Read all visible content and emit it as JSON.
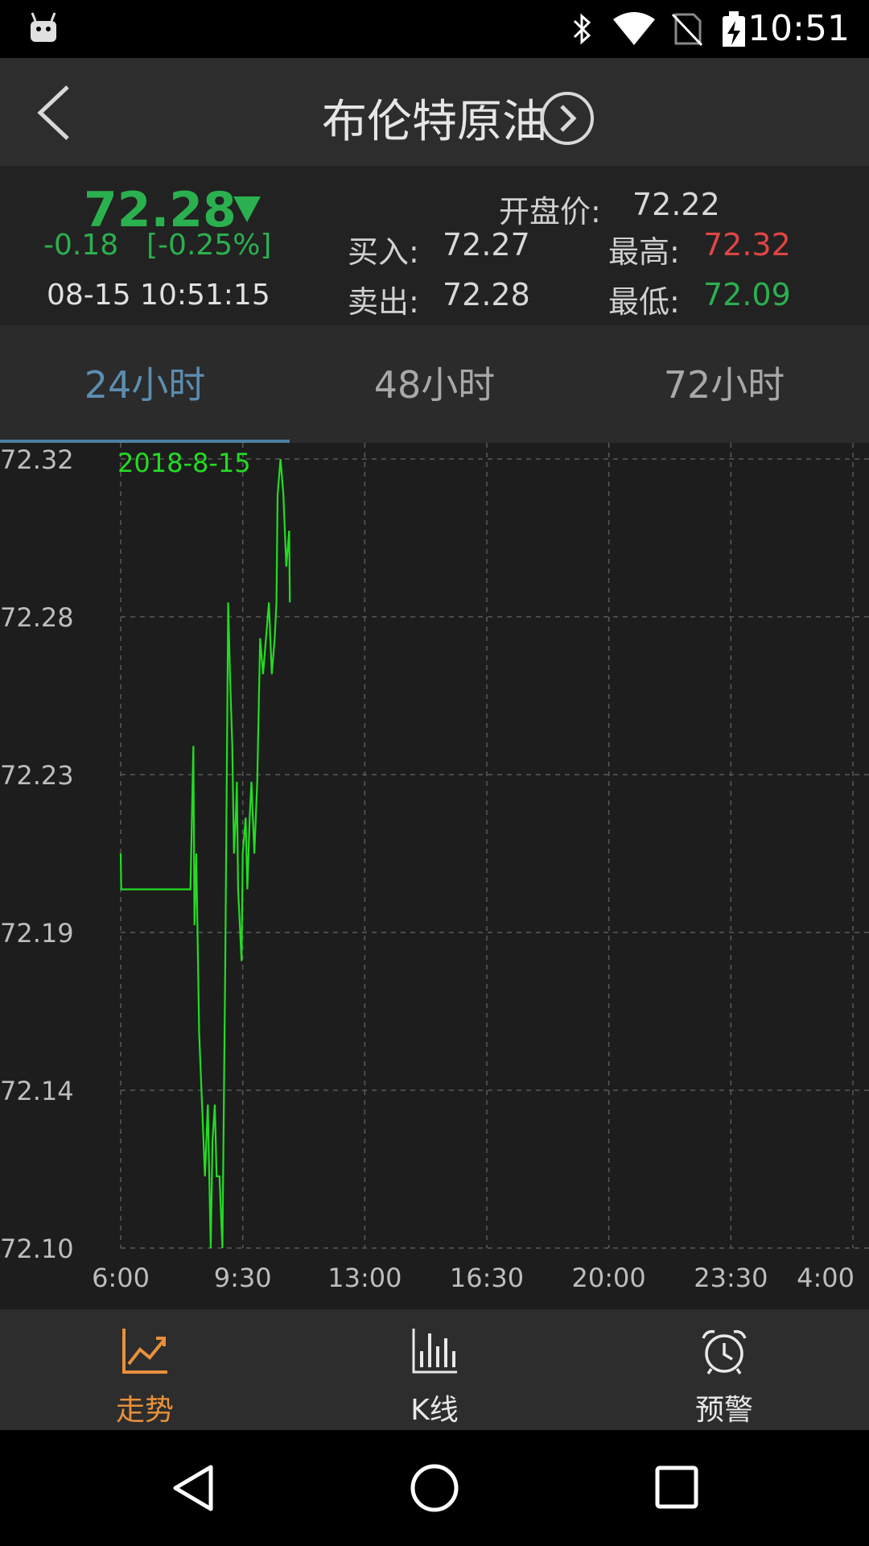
{
  "status_bar": {
    "time": "10:51"
  },
  "header": {
    "title": "布伦特原油"
  },
  "quote": {
    "price": "72.28",
    "change": "-0.18",
    "change_pct": "[-0.25%]",
    "datetime": "08-15 10:51:15",
    "open_label": "开盘价:",
    "open_value": "72.22",
    "buy_label": "买入:",
    "buy_value": "72.27",
    "sell_label": "卖出:",
    "sell_value": "72.28",
    "high_label": "最高:",
    "high_value": "72.32",
    "low_label": "最低:",
    "low_value": "72.09",
    "colors": {
      "up": "#e04545",
      "down": "#2bb04f"
    }
  },
  "tabs": [
    {
      "label": "24小时",
      "active": true
    },
    {
      "label": "48小时",
      "active": false
    },
    {
      "label": "72小时",
      "active": false
    }
  ],
  "chart_data": {
    "type": "line",
    "date_label": "2018-8-15",
    "y_ticks": [
      "72.32",
      "72.28",
      "72.23",
      "72.19",
      "72.14",
      "72.10"
    ],
    "x_ticks": [
      "6:00",
      "9:30",
      "13:00",
      "16:30",
      "20:00",
      "23:30",
      "4:00"
    ],
    "ylim": [
      72.1,
      72.32
    ],
    "grid": true,
    "line_color": "#22dd22",
    "series": [
      {
        "x": [
          "6:00",
          "6:01",
          "8:00",
          "8:05",
          "8:07",
          "8:10",
          "8:15",
          "8:20",
          "8:25",
          "8:30",
          "8:35",
          "8:38",
          "8:42",
          "8:45",
          "8:50",
          "8:55",
          "9:00",
          "9:05",
          "9:08",
          "9:12",
          "9:15",
          "9:18",
          "9:20",
          "9:22",
          "9:25",
          "9:28",
          "9:30",
          "9:35",
          "9:38",
          "9:40",
          "9:42",
          "9:45",
          "9:50",
          "9:55",
          "10:00",
          "10:05",
          "10:10",
          "10:15",
          "10:20",
          "10:25",
          "10:28",
          "10:30",
          "10:35",
          "10:40",
          "10:45",
          "10:50",
          "10:51"
        ],
        "values": [
          72.21,
          72.2,
          72.2,
          72.24,
          72.19,
          72.21,
          72.16,
          72.14,
          72.12,
          72.14,
          72.1,
          72.13,
          72.14,
          72.12,
          72.12,
          72.1,
          72.18,
          72.28,
          72.26,
          72.24,
          72.21,
          72.22,
          72.23,
          72.2,
          72.19,
          72.18,
          72.21,
          72.22,
          72.2,
          72.21,
          72.22,
          72.23,
          72.21,
          72.23,
          72.27,
          72.26,
          72.27,
          72.28,
          72.26,
          72.27,
          72.28,
          72.31,
          72.32,
          72.31,
          72.29,
          72.3,
          72.28
        ]
      }
    ]
  },
  "bottom_nav": [
    {
      "label": "走势",
      "icon": "trend-chart-icon",
      "active": true
    },
    {
      "label": "K线",
      "icon": "bar-chart-icon",
      "active": false
    },
    {
      "label": "预警",
      "icon": "alarm-clock-icon",
      "active": false
    }
  ],
  "system_nav": {
    "icons": [
      "back-triangle-icon",
      "home-circle-icon",
      "recents-square-icon"
    ]
  }
}
